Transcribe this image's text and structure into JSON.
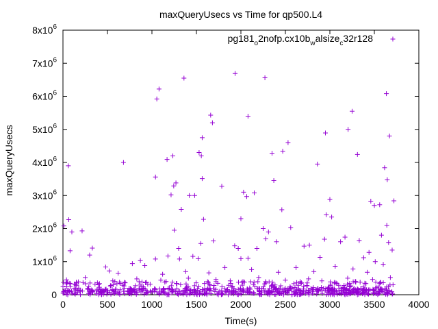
{
  "chart_data": {
    "type": "scatter",
    "title": "maxQueryUsecs vs Time for qp500.L4",
    "xlabel": "Time(s)",
    "ylabel": "maxQueryUsecs",
    "xlim": [
      0,
      4000
    ],
    "ylim": [
      0,
      8000000
    ],
    "x_ticks": [
      {
        "value": 0,
        "label": "0"
      },
      {
        "value": 500,
        "label": "500"
      },
      {
        "value": 1000,
        "label": "1000"
      },
      {
        "value": 1500,
        "label": "1500"
      },
      {
        "value": 2000,
        "label": "2000"
      },
      {
        "value": 2500,
        "label": "2500"
      },
      {
        "value": 3000,
        "label": "3000"
      },
      {
        "value": 3500,
        "label": "3500"
      },
      {
        "value": 4000,
        "label": "4000"
      }
    ],
    "y_ticks": [
      {
        "value": 0,
        "base": "0",
        "exp": ""
      },
      {
        "value": 1000000,
        "base": "1x10",
        "exp": "6"
      },
      {
        "value": 2000000,
        "base": "2x10",
        "exp": "6"
      },
      {
        "value": 3000000,
        "base": "3x10",
        "exp": "6"
      },
      {
        "value": 4000000,
        "base": "4x10",
        "exp": "6"
      },
      {
        "value": 5000000,
        "base": "5x10",
        "exp": "6"
      },
      {
        "value": 6000000,
        "base": "6x10",
        "exp": "6"
      },
      {
        "value": 7000000,
        "base": "7x10",
        "exp": "6"
      },
      {
        "value": 8000000,
        "base": "8x10",
        "exp": "6"
      }
    ],
    "grid": false,
    "legend_position": "top-right",
    "series": [
      {
        "name": "pg181_o2nofp.cx10b_walsize_c32r128",
        "name_parts": [
          {
            "text": "pg181",
            "sub": false
          },
          {
            "text": "o",
            "sub": true
          },
          {
            "text": "2nofp.cx10b",
            "sub": false
          },
          {
            "text": "w",
            "sub": true
          },
          {
            "text": "alsize",
            "sub": false
          },
          {
            "text": "c",
            "sub": true
          },
          {
            "text": "32r128",
            "sub": false
          }
        ],
        "color": "#9400d3",
        "marker": "plus",
        "points": [
          [
            10,
            2080000
          ],
          [
            60,
            3900000
          ],
          [
            65,
            2270000
          ],
          [
            80,
            1330000
          ],
          [
            100,
            1900000
          ],
          [
            215,
            1930000
          ],
          [
            330,
            1410000
          ],
          [
            680,
            4000000
          ],
          [
            1040,
            3560000
          ],
          [
            1055,
            5920000
          ],
          [
            1080,
            6220000
          ],
          [
            1170,
            4090000
          ],
          [
            1215,
            3020000
          ],
          [
            1235,
            4200000
          ],
          [
            1250,
            1950000
          ],
          [
            1270,
            3380000
          ],
          [
            1245,
            3290000
          ],
          [
            1330,
            2580000
          ],
          [
            1360,
            6550000
          ],
          [
            1420,
            3000000
          ],
          [
            1480,
            3000000
          ],
          [
            1530,
            4300000
          ],
          [
            1555,
            4200000
          ],
          [
            1565,
            4750000
          ],
          [
            1565,
            3510000
          ],
          [
            1580,
            2280000
          ],
          [
            1660,
            5430000
          ],
          [
            1680,
            5200000
          ],
          [
            1785,
            3280000
          ],
          [
            1935,
            6690000
          ],
          [
            2000,
            2300000
          ],
          [
            2030,
            3100000
          ],
          [
            2065,
            2970000
          ],
          [
            2080,
            5400000
          ],
          [
            2150,
            3080000
          ],
          [
            2270,
            6560000
          ],
          [
            2350,
            4280000
          ],
          [
            2370,
            3450000
          ],
          [
            2460,
            2570000
          ],
          [
            2470,
            4340000
          ],
          [
            2530,
            4600000
          ],
          [
            2560,
            2030000
          ],
          [
            2860,
            3950000
          ],
          [
            2950,
            4890000
          ],
          [
            2960,
            2420000
          ],
          [
            3000,
            2880000
          ],
          [
            3020,
            2350000
          ],
          [
            3205,
            5000000
          ],
          [
            3250,
            5550000
          ],
          [
            3310,
            4240000
          ],
          [
            3460,
            2830000
          ],
          [
            3500,
            2700000
          ],
          [
            3560,
            2720000
          ],
          [
            3615,
            3840000
          ],
          [
            3635,
            6080000
          ],
          [
            3645,
            3480000
          ],
          [
            3670,
            4800000
          ],
          [
            3720,
            2840000
          ],
          [
            3700,
            1350000
          ],
          [
            2770,
            1500000
          ],
          [
            3170,
            1740000
          ],
          [
            3330,
            1640000
          ],
          [
            3440,
            1280000
          ],
          [
            3580,
            1800000
          ],
          [
            3660,
            1580000
          ],
          [
            3640,
            2100000
          ],
          [
            2940,
            1680000
          ],
          [
            2890,
            1130000
          ],
          [
            2400,
            1600000
          ],
          [
            2280,
            1690000
          ],
          [
            2250,
            2000000
          ],
          [
            2310,
            1900000
          ],
          [
            2180,
            1400000
          ],
          [
            1970,
            1400000
          ],
          [
            1930,
            1480000
          ],
          [
            1690,
            1630000
          ],
          [
            1550,
            1550000
          ],
          [
            1310,
            1080000
          ],
          [
            1460,
            1160000
          ],
          [
            1180,
            1170000
          ],
          [
            1040,
            1080000
          ],
          [
            870,
            1030000
          ],
          [
            1300,
            1400000
          ],
          [
            1520,
            1090000
          ],
          [
            2080,
            1100000
          ],
          [
            2000,
            1090000
          ],
          [
            2710,
            1470000
          ],
          [
            3120,
            1600000
          ],
          [
            3380,
            1120000
          ],
          [
            3510,
            1000000
          ],
          [
            300,
            1200000
          ],
          [
            480,
            840000
          ],
          [
            520,
            720000
          ],
          [
            620,
            650000
          ],
          [
            780,
            940000
          ],
          [
            920,
            880000
          ],
          [
            1120,
            620000
          ],
          [
            1380,
            700000
          ],
          [
            1640,
            660000
          ],
          [
            1820,
            820000
          ],
          [
            2120,
            760000
          ],
          [
            2420,
            680000
          ],
          [
            2620,
            820000
          ],
          [
            2820,
            700000
          ],
          [
            3060,
            860000
          ],
          [
            3260,
            780000
          ],
          [
            3420,
            680000
          ],
          [
            3600,
            920000
          ],
          [
            40,
            450000
          ],
          [
            150,
            380000
          ],
          [
            250,
            520000
          ],
          [
            400,
            300000
          ],
          [
            560,
            420000
          ],
          [
            700,
            360000
          ],
          [
            830,
            480000
          ],
          [
            980,
            320000
          ],
          [
            1100,
            440000
          ],
          [
            1230,
            380000
          ],
          [
            1410,
            500000
          ],
          [
            1590,
            340000
          ],
          [
            1720,
            460000
          ],
          [
            1880,
            420000
          ],
          [
            2040,
            380000
          ],
          [
            2200,
            520000
          ],
          [
            2360,
            300000
          ],
          [
            2500,
            440000
          ],
          [
            2680,
            360000
          ],
          [
            2760,
            480000
          ],
          [
            2910,
            420000
          ],
          [
            3080,
            340000
          ],
          [
            3200,
            500000
          ],
          [
            3340,
            380000
          ],
          [
            3480,
            460000
          ],
          [
            3560,
            340000
          ],
          [
            3680,
            520000
          ],
          [
            3710,
            300000
          ]
        ]
      }
    ]
  }
}
